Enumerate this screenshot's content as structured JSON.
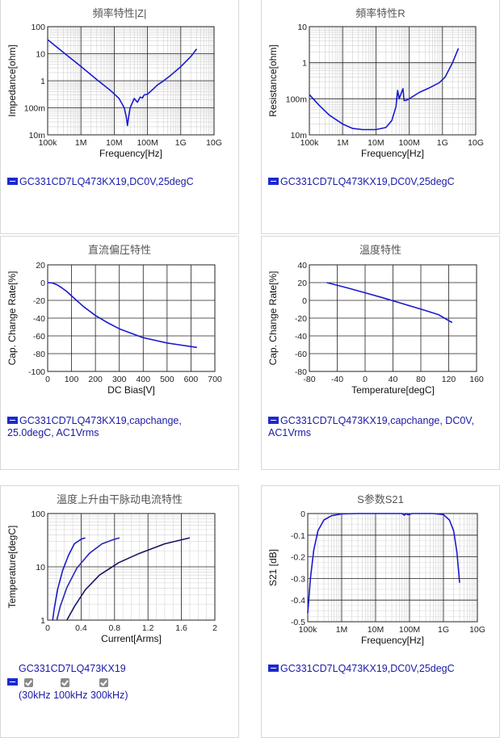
{
  "panels": [
    {
      "title": "頻率特性|Z|",
      "legend": "GC331CD7LQ473KX19,DC0V,25degC",
      "chart_data": {
        "type": "line",
        "xscale": "log",
        "yscale": "log",
        "xlabel": "Frequency[Hz]",
        "ylabel": "Impedance[ohm]",
        "xlim": [
          100000,
          10000000000
        ],
        "ylim": [
          0.01,
          100
        ],
        "xticks": [
          {
            "v": 100000,
            "label": "100k"
          },
          {
            "v": 1000000,
            "label": "1M"
          },
          {
            "v": 10000000,
            "label": "10M"
          },
          {
            "v": 100000000,
            "label": "100M"
          },
          {
            "v": 1000000000,
            "label": "1G"
          },
          {
            "v": 10000000000,
            "label": "10G"
          }
        ],
        "yticks": [
          {
            "v": 0.01,
            "label": "10m"
          },
          {
            "v": 0.1,
            "label": "100m"
          },
          {
            "v": 1,
            "label": "1"
          },
          {
            "v": 10,
            "label": "10"
          },
          {
            "v": 100,
            "label": "100"
          }
        ],
        "series": [
          {
            "color": "#1a1ad0",
            "x": [
              100000,
              300000,
              1000000,
              3000000,
              8000000,
              14000000,
              20000000,
              23000000,
              25000000,
              27000000,
              30000000,
              40000000,
              50000000,
              60000000,
              70000000,
              80000000,
              100000000,
              150000000,
              200000000,
              300000000,
              500000000,
              1000000000,
              2000000000,
              3000000000
            ],
            "y": [
              33,
              11,
              3.4,
              1.1,
              0.42,
              0.22,
              0.1,
              0.047,
              0.022,
              0.045,
              0.1,
              0.22,
              0.16,
              0.25,
              0.23,
              0.3,
              0.32,
              0.5,
              0.7,
              0.98,
              1.6,
              3.3,
              7.8,
              15
            ]
          }
        ]
      }
    },
    {
      "title": "頻率特性R",
      "legend": "GC331CD7LQ473KX19,DC0V,25degC",
      "chart_data": {
        "type": "line",
        "xscale": "log",
        "yscale": "log",
        "xlabel": "Frequency[Hz]",
        "ylabel": "Resistance[ohm]",
        "xlim": [
          100000,
          10000000000
        ],
        "ylim": [
          0.01,
          10
        ],
        "xticks": [
          {
            "v": 100000,
            "label": "100k"
          },
          {
            "v": 1000000,
            "label": "1M"
          },
          {
            "v": 10000000,
            "label": "10M"
          },
          {
            "v": 100000000,
            "label": "100M"
          },
          {
            "v": 1000000000,
            "label": "1G"
          },
          {
            "v": 10000000000,
            "label": "10G"
          }
        ],
        "yticks": [
          {
            "v": 0.01,
            "label": "10m"
          },
          {
            "v": 0.1,
            "label": "100m"
          },
          {
            "v": 1,
            "label": "1"
          },
          {
            "v": 10,
            "label": "10"
          }
        ],
        "series": [
          {
            "color": "#1a1ad0",
            "x": [
              100000,
              200000,
              400000,
              1000000,
              2000000,
              4000000,
              10000000,
              20000000,
              30000000,
              40000000,
              45000000,
              50000000,
              60000000,
              65000000,
              70000000,
              80000000,
              100000000,
              200000000,
              400000000,
              800000000,
              1200000000,
              2000000000,
              3000000000
            ],
            "y": [
              0.13,
              0.065,
              0.035,
              0.02,
              0.015,
              0.014,
              0.014,
              0.016,
              0.025,
              0.06,
              0.17,
              0.1,
              0.16,
              0.19,
              0.09,
              0.09,
              0.1,
              0.15,
              0.2,
              0.28,
              0.4,
              1,
              2.5
            ]
          }
        ]
      }
    },
    {
      "title": "直流偏圧特性",
      "legend": [
        "GC331CD7LQ473KX19,capchange,",
        "25.0degC, AC1Vrms"
      ],
      "chart_data": {
        "type": "line",
        "xscale": "linear",
        "yscale": "linear",
        "xlabel": "DC Bias[V]",
        "ylabel": "Cap. Change Rate[%]",
        "xlim": [
          0,
          700
        ],
        "ylim": [
          -100,
          20
        ],
        "xticks": [
          {
            "v": 0,
            "label": "0"
          },
          {
            "v": 100,
            "label": "100"
          },
          {
            "v": 200,
            "label": "200"
          },
          {
            "v": 300,
            "label": "300"
          },
          {
            "v": 400,
            "label": "400"
          },
          {
            "v": 500,
            "label": "500"
          },
          {
            "v": 600,
            "label": "600"
          },
          {
            "v": 700,
            "label": "700"
          }
        ],
        "yticks": [
          {
            "v": 20,
            "label": "20"
          },
          {
            "v": 0,
            "label": "0"
          },
          {
            "v": -20,
            "label": "-20"
          },
          {
            "v": -40,
            "label": "-40"
          },
          {
            "v": -60,
            "label": "-60"
          },
          {
            "v": -80,
            "label": "-80"
          },
          {
            "v": -100,
            "label": "-100"
          }
        ],
        "series": [
          {
            "color": "#1a1ad0",
            "x": [
              0,
              20,
              40,
              60,
              80,
              100,
              150,
              200,
              250,
              300,
              350,
              400,
              450,
              500,
              550,
              600,
              625
            ],
            "y": [
              0,
              -0.5,
              -2.5,
              -6,
              -10,
              -15,
              -27,
              -37,
              -45,
              -52,
              -57,
              -62,
              -65,
              -68,
              -70,
              -72,
              -73
            ]
          }
        ]
      }
    },
    {
      "title": "溫度特性",
      "legend": [
        "GC331CD7LQ473KX19,capchange, DC0V,",
        "AC1Vrms"
      ],
      "chart_data": {
        "type": "line",
        "xscale": "linear",
        "yscale": "linear",
        "xlabel": "Temperature[degC]",
        "ylabel": "Cap. Change Rate[%]",
        "xlim": [
          -80,
          160
        ],
        "ylim": [
          -80,
          40
        ],
        "xticks": [
          {
            "v": -80,
            "label": "-80"
          },
          {
            "v": -40,
            "label": "-40"
          },
          {
            "v": 0,
            "label": "0"
          },
          {
            "v": 40,
            "label": "40"
          },
          {
            "v": 80,
            "label": "80"
          },
          {
            "v": 120,
            "label": "120"
          },
          {
            "v": 160,
            "label": "160"
          }
        ],
        "yticks": [
          {
            "v": 40,
            "label": "40"
          },
          {
            "v": 20,
            "label": "20"
          },
          {
            "v": 0,
            "label": "0"
          },
          {
            "v": -20,
            "label": "-20"
          },
          {
            "v": -40,
            "label": "-40"
          },
          {
            "v": -60,
            "label": "-60"
          },
          {
            "v": -80,
            "label": "-80"
          }
        ],
        "series": [
          {
            "color": "#1a1ad0",
            "x": [
              -55,
              -25,
              0,
              25,
              55,
              85,
              105,
              125
            ],
            "y": [
              20,
              14,
              8.5,
              3,
              -4,
              -11,
              -16,
              -25
            ]
          }
        ]
      }
    },
    {
      "title": "溫度上升由干脉动电流特性",
      "legend": "GC331CD7LQ473KX19",
      "legend2": [
        "(30kHz",
        "100kHz",
        "300kHz)"
      ],
      "chart_data": {
        "type": "line",
        "xscale": "linear",
        "yscale": "log",
        "xlabel": "Current[Arms]",
        "ylabel": "Temperature[degC]",
        "xlim": [
          0,
          2
        ],
        "ylim": [
          1,
          100
        ],
        "xticks": [
          {
            "v": 0,
            "label": "0"
          },
          {
            "v": 0.4,
            "label": "0.4"
          },
          {
            "v": 0.8,
            "label": "0.8"
          },
          {
            "v": 1.2,
            "label": "1.2"
          },
          {
            "v": 1.6,
            "label": "1.6"
          },
          {
            "v": 2,
            "label": "2"
          }
        ],
        "yticks": [
          {
            "v": 1,
            "label": "1"
          },
          {
            "v": 10,
            "label": "10"
          },
          {
            "v": 100,
            "label": "100"
          }
        ],
        "series": [
          {
            "name": "30kHz",
            "color": "#1a1ad0",
            "x": [
              0.06,
              0.08,
              0.12,
              0.18,
              0.25,
              0.32,
              0.4,
              0.45
            ],
            "y": [
              1,
              1.7,
              3.8,
              8.6,
              16.6,
              27,
              33,
              35
            ]
          },
          {
            "name": "100kHz",
            "color": "#2a2ab8",
            "x": [
              0.11,
              0.15,
              0.23,
              0.35,
              0.5,
              0.65,
              0.8,
              0.86
            ],
            "y": [
              1,
              1.8,
              4.1,
              9.5,
              18,
              27,
              33,
              35
            ]
          },
          {
            "name": "300kHz",
            "color": "#151560",
            "x": [
              0.23,
              0.32,
              0.45,
              0.62,
              0.85,
              1.1,
              1.4,
              1.7
            ],
            "y": [
              1,
              1.8,
              3.7,
              7,
              12,
              18,
              27,
              35
            ]
          }
        ]
      }
    },
    {
      "title": "S参数S21",
      "legend": "GC331CD7LQ473KX19,DC0V,25degC",
      "chart_data": {
        "type": "line",
        "xscale": "log",
        "yscale": "linear",
        "xlabel": "Frequency[Hz]",
        "ylabel": "S21 [dB]",
        "xlim": [
          100000,
          10000000000
        ],
        "ylim": [
          -0.5,
          0
        ],
        "xticks": [
          {
            "v": 100000,
            "label": "100k"
          },
          {
            "v": 1000000,
            "label": "1M"
          },
          {
            "v": 10000000,
            "label": "10M"
          },
          {
            "v": 100000000,
            "label": "100M"
          },
          {
            "v": 1000000000,
            "label": "1G"
          },
          {
            "v": 10000000000,
            "label": "10G"
          }
        ],
        "yticks": [
          {
            "v": 0,
            "label": "0"
          },
          {
            "v": -0.1,
            "label": "-0.1"
          },
          {
            "v": -0.2,
            "label": "-0.2"
          },
          {
            "v": -0.3,
            "label": "-0.3"
          },
          {
            "v": -0.4,
            "label": "-0.4"
          },
          {
            "v": -0.5,
            "label": "-0.5"
          }
        ],
        "series": [
          {
            "color": "#1a1ad0",
            "x": [
              100000,
              120000,
              150000,
              200000,
              300000,
              500000,
              1000000,
              3000000,
              30000000,
              60000000,
              70000000,
              80000000,
              90000000,
              120000000,
              500000000,
              1000000000,
              1500000000,
              2000000000,
              2500000000,
              3000000000
            ],
            "y": [
              -0.46,
              -0.3,
              -0.17,
              -0.08,
              -0.03,
              -0.01,
              -0.002,
              0,
              0,
              0,
              -0.008,
              0,
              -0.006,
              0,
              0,
              -0.005,
              -0.03,
              -0.08,
              -0.18,
              -0.32
            ]
          }
        ]
      }
    }
  ]
}
